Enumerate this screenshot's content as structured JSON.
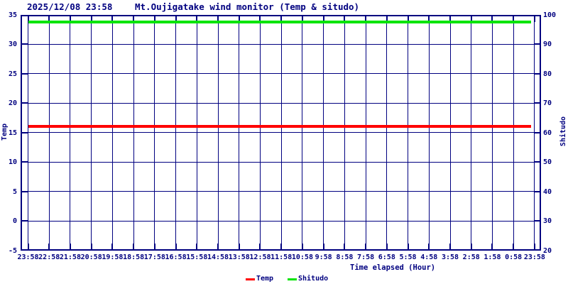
{
  "chart_data": {
    "type": "line",
    "datetime": "2025/12/08 23:58",
    "title": "Mt.Oujigatake wind monitor (Temp & situdo)",
    "xlabel": "Time elapsed (Hour)",
    "ylabel_left": "Temp",
    "ylabel_right": "Shitudo",
    "axis_color": "#000080",
    "background_color": "#ffffff",
    "grid": true,
    "legend_position": "bottom-center",
    "x_ticks": [
      "23:58",
      "22:58",
      "21:58",
      "20:58",
      "19:58",
      "18:58",
      "17:58",
      "16:58",
      "15:58",
      "14:58",
      "13:58",
      "12:58",
      "11:58",
      "10:58",
      "9:58",
      "8:58",
      "7:58",
      "6:58",
      "5:58",
      "4:58",
      "3:58",
      "2:58",
      "1:58",
      "0:58",
      "23:58"
    ],
    "y_left": {
      "label": "Temp",
      "min": -5,
      "max": 35,
      "step": 5,
      "ticks": [
        35,
        30,
        25,
        20,
        15,
        10,
        5,
        0,
        -5
      ]
    },
    "y_right": {
      "label": "Shitudo",
      "min": 20,
      "max": 100,
      "step": 10,
      "ticks": [
        100,
        90,
        80,
        70,
        60,
        50,
        40,
        30,
        20
      ]
    },
    "series": [
      {
        "name": "Temp",
        "color": "#ff0000",
        "axis": "left",
        "value": 16.1,
        "shape": "constant-horizontal-line"
      },
      {
        "name": "Shitudo",
        "color": "#00e400",
        "axis": "right",
        "value": 97.5,
        "shape": "constant-horizontal-line"
      }
    ]
  }
}
